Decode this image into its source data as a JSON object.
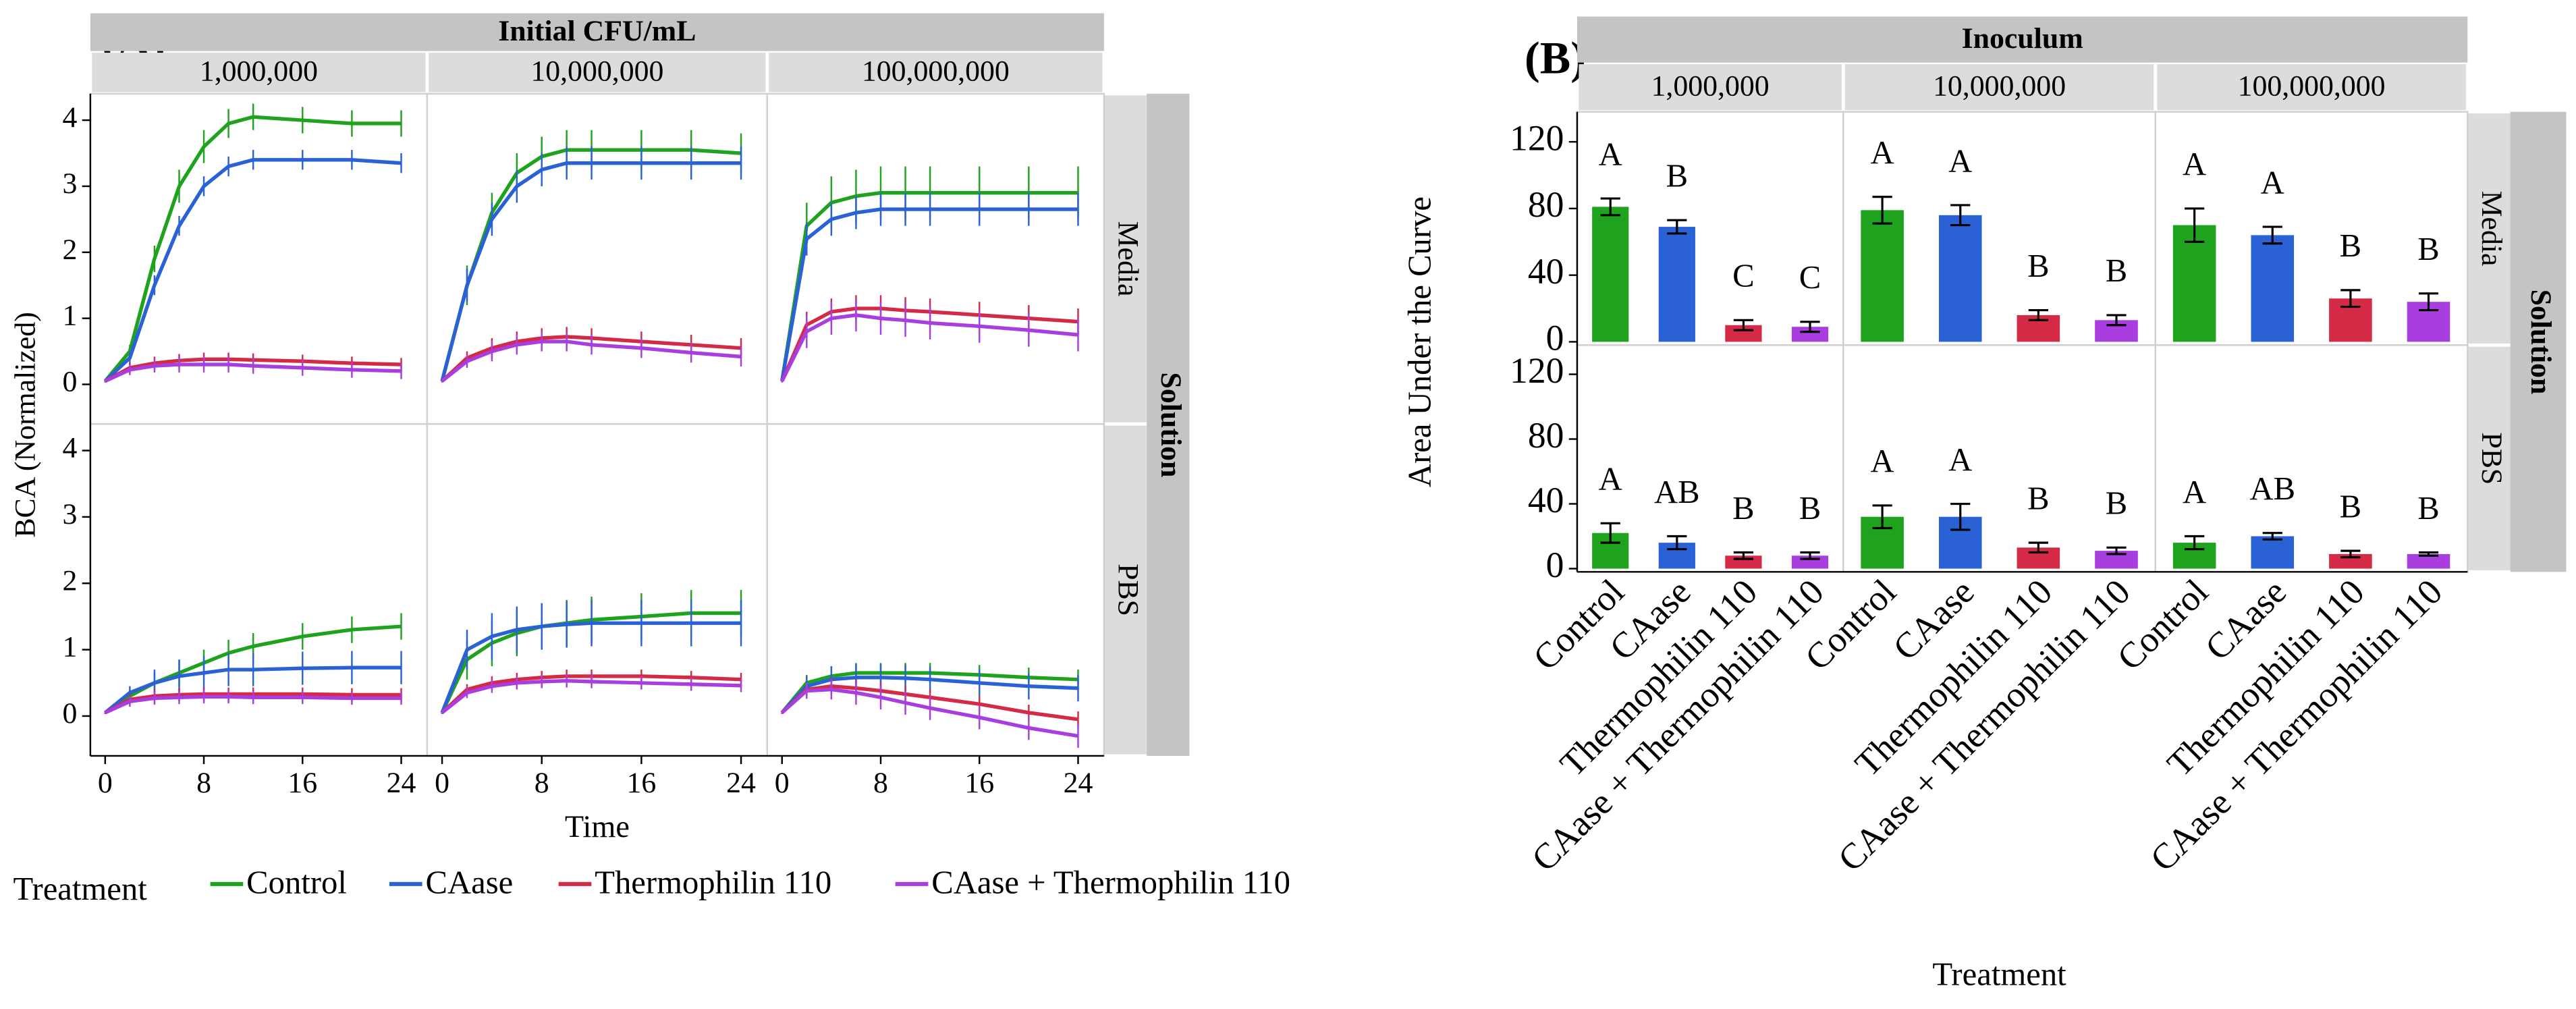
{
  "chart_data": [
    {
      "type": "line",
      "panel_label": "(A)",
      "column_header": "Initial CFU/mL",
      "columns": [
        "1,000,000",
        "10,000,000",
        "100,000,000"
      ],
      "row_header": "Solution",
      "rows": [
        "Media",
        "PBS"
      ],
      "x_label": "Time",
      "y_label": "BCA (Normalized)",
      "xlim": [
        -1.2,
        26.1
      ],
      "ylim": [
        -0.6,
        4.4
      ],
      "xticks": [
        0,
        8,
        16,
        24
      ],
      "yticks": [
        0,
        1,
        2,
        3,
        4
      ],
      "legend_title": "Treatment",
      "series": [
        {
          "name": "Control",
          "color": "#1fa31f"
        },
        {
          "name": "CAase",
          "color": "#2a62d6"
        },
        {
          "name": "Thermophilin 110",
          "color": "#d42a45"
        },
        {
          "name": "CAase + Thermophilin 110",
          "color": "#a93ee0"
        }
      ],
      "x": [
        0,
        2,
        4,
        6,
        8,
        10,
        12,
        16,
        20,
        24
      ],
      "panels": [
        [
          {
            "series": [
              {
                "values": [
                  0.05,
                  0.5,
                  1.9,
                  3.0,
                  3.6,
                  3.95,
                  4.05,
                  4.0,
                  3.95,
                  3.95
                ],
                "errors": [
                  0.02,
                  0.1,
                  0.2,
                  0.25,
                  0.25,
                  0.22,
                  0.2,
                  0.2,
                  0.2,
                  0.2
                ]
              },
              {
                "values": [
                  0.05,
                  0.4,
                  1.5,
                  2.4,
                  3.0,
                  3.3,
                  3.4,
                  3.4,
                  3.4,
                  3.35
                ],
                "errors": [
                  0.02,
                  0.1,
                  0.15,
                  0.15,
                  0.15,
                  0.15,
                  0.15,
                  0.15,
                  0.15,
                  0.15
                ]
              },
              {
                "values": [
                  0.05,
                  0.25,
                  0.32,
                  0.36,
                  0.38,
                  0.38,
                  0.37,
                  0.35,
                  0.32,
                  0.3
                ],
                "errors": [
                  0.02,
                  0.08,
                  0.1,
                  0.1,
                  0.1,
                  0.1,
                  0.1,
                  0.1,
                  0.1,
                  0.1
                ]
              },
              {
                "values": [
                  0.05,
                  0.22,
                  0.28,
                  0.3,
                  0.3,
                  0.3,
                  0.28,
                  0.25,
                  0.22,
                  0.2
                ],
                "errors": [
                  0.02,
                  0.08,
                  0.1,
                  0.12,
                  0.12,
                  0.12,
                  0.12,
                  0.12,
                  0.12,
                  0.12
                ]
              }
            ]
          },
          {
            "series": [
              {
                "values": [
                  0.05,
                  1.5,
                  2.6,
                  3.2,
                  3.45,
                  3.55,
                  3.55,
                  3.55,
                  3.55,
                  3.5
                ],
                "errors": [
                  0.02,
                  0.3,
                  0.3,
                  0.3,
                  0.3,
                  0.3,
                  0.3,
                  0.3,
                  0.3,
                  0.3
                ]
              },
              {
                "values": [
                  0.05,
                  1.5,
                  2.5,
                  3.0,
                  3.25,
                  3.35,
                  3.35,
                  3.35,
                  3.35,
                  3.35
                ],
                "errors": [
                  0.02,
                  0.25,
                  0.25,
                  0.25,
                  0.25,
                  0.25,
                  0.25,
                  0.25,
                  0.25,
                  0.25
                ]
              },
              {
                "values": [
                  0.05,
                  0.4,
                  0.55,
                  0.65,
                  0.7,
                  0.72,
                  0.7,
                  0.65,
                  0.6,
                  0.55
                ],
                "errors": [
                  0.02,
                  0.1,
                  0.15,
                  0.15,
                  0.15,
                  0.15,
                  0.15,
                  0.15,
                  0.15,
                  0.15
                ]
              },
              {
                "values": [
                  0.05,
                  0.35,
                  0.5,
                  0.6,
                  0.65,
                  0.65,
                  0.6,
                  0.55,
                  0.48,
                  0.42
                ],
                "errors": [
                  0.02,
                  0.1,
                  0.15,
                  0.15,
                  0.15,
                  0.15,
                  0.15,
                  0.15,
                  0.15,
                  0.15
                ]
              }
            ]
          },
          {
            "series": [
              {
                "values": [
                  0.05,
                  2.4,
                  2.75,
                  2.85,
                  2.9,
                  2.9,
                  2.9,
                  2.9,
                  2.9,
                  2.9
                ],
                "errors": [
                  0.02,
                  0.35,
                  0.4,
                  0.4,
                  0.4,
                  0.4,
                  0.4,
                  0.4,
                  0.4,
                  0.4
                ]
              },
              {
                "values": [
                  0.05,
                  2.2,
                  2.5,
                  2.6,
                  2.65,
                  2.65,
                  2.65,
                  2.65,
                  2.65,
                  2.65
                ],
                "errors": [
                  0.02,
                  0.25,
                  0.25,
                  0.25,
                  0.25,
                  0.25,
                  0.25,
                  0.25,
                  0.25,
                  0.25
                ]
              },
              {
                "values": [
                  0.05,
                  0.9,
                  1.1,
                  1.15,
                  1.15,
                  1.12,
                  1.1,
                  1.05,
                  1.0,
                  0.95
                ],
                "errors": [
                  0.02,
                  0.2,
                  0.2,
                  0.2,
                  0.2,
                  0.2,
                  0.2,
                  0.2,
                  0.2,
                  0.2
                ]
              },
              {
                "values": [
                  0.05,
                  0.8,
                  1.0,
                  1.05,
                  1.0,
                  0.97,
                  0.93,
                  0.88,
                  0.82,
                  0.75
                ],
                "errors": [
                  0.02,
                  0.25,
                  0.25,
                  0.25,
                  0.25,
                  0.25,
                  0.25,
                  0.25,
                  0.25,
                  0.25
                ]
              }
            ]
          }
        ],
        [
          {
            "series": [
              {
                "values": [
                  0.05,
                  0.3,
                  0.5,
                  0.65,
                  0.8,
                  0.95,
                  1.05,
                  1.2,
                  1.3,
                  1.35
                ],
                "errors": [
                  0.02,
                  0.1,
                  0.15,
                  0.2,
                  0.2,
                  0.2,
                  0.2,
                  0.2,
                  0.2,
                  0.2
                ]
              },
              {
                "values": [
                  0.05,
                  0.35,
                  0.5,
                  0.6,
                  0.65,
                  0.7,
                  0.7,
                  0.72,
                  0.73,
                  0.73
                ],
                "errors": [
                  0.02,
                  0.1,
                  0.2,
                  0.25,
                  0.25,
                  0.25,
                  0.25,
                  0.25,
                  0.25,
                  0.25
                ]
              },
              {
                "values": [
                  0.05,
                  0.25,
                  0.3,
                  0.32,
                  0.33,
                  0.33,
                  0.33,
                  0.33,
                  0.32,
                  0.32
                ],
                "errors": [
                  0.02,
                  0.08,
                  0.1,
                  0.1,
                  0.1,
                  0.1,
                  0.1,
                  0.1,
                  0.1,
                  0.1
                ]
              },
              {
                "values": [
                  0.05,
                  0.22,
                  0.27,
                  0.28,
                  0.29,
                  0.29,
                  0.28,
                  0.28,
                  0.27,
                  0.27
                ],
                "errors": [
                  0.02,
                  0.08,
                  0.1,
                  0.1,
                  0.1,
                  0.1,
                  0.1,
                  0.1,
                  0.1,
                  0.1
                ]
              }
            ]
          },
          {
            "series": [
              {
                "values": [
                  0.05,
                  0.85,
                  1.1,
                  1.25,
                  1.35,
                  1.4,
                  1.45,
                  1.5,
                  1.55,
                  1.55
                ],
                "errors": [
                  0.02,
                  0.3,
                  0.35,
                  0.35,
                  0.35,
                  0.35,
                  0.35,
                  0.35,
                  0.35,
                  0.35
                ]
              },
              {
                "values": [
                  0.05,
                  1.0,
                  1.2,
                  1.3,
                  1.35,
                  1.38,
                  1.4,
                  1.4,
                  1.4,
                  1.4
                ],
                "errors": [
                  0.02,
                  0.3,
                  0.35,
                  0.35,
                  0.35,
                  0.35,
                  0.35,
                  0.35,
                  0.35,
                  0.35
                ]
              },
              {
                "values": [
                  0.05,
                  0.4,
                  0.5,
                  0.55,
                  0.58,
                  0.6,
                  0.6,
                  0.6,
                  0.58,
                  0.55
                ],
                "errors": [
                  0.02,
                  0.08,
                  0.1,
                  0.1,
                  0.1,
                  0.1,
                  0.1,
                  0.1,
                  0.1,
                  0.1
                ]
              },
              {
                "values": [
                  0.05,
                  0.35,
                  0.45,
                  0.5,
                  0.52,
                  0.53,
                  0.52,
                  0.5,
                  0.48,
                  0.46
                ],
                "errors": [
                  0.02,
                  0.08,
                  0.1,
                  0.1,
                  0.1,
                  0.1,
                  0.1,
                  0.1,
                  0.1,
                  0.1
                ]
              }
            ]
          },
          {
            "series": [
              {
                "values": [
                  0.05,
                  0.5,
                  0.6,
                  0.65,
                  0.65,
                  0.65,
                  0.65,
                  0.62,
                  0.58,
                  0.55
                ],
                "errors": [
                  0.02,
                  0.12,
                  0.15,
                  0.15,
                  0.15,
                  0.15,
                  0.15,
                  0.15,
                  0.15,
                  0.15
                ]
              },
              {
                "values": [
                  0.05,
                  0.45,
                  0.55,
                  0.58,
                  0.58,
                  0.57,
                  0.55,
                  0.5,
                  0.45,
                  0.42
                ],
                "errors": [
                  0.02,
                  0.15,
                  0.2,
                  0.2,
                  0.2,
                  0.2,
                  0.2,
                  0.2,
                  0.2,
                  0.2
                ]
              },
              {
                "values": [
                  0.05,
                  0.4,
                  0.45,
                  0.42,
                  0.38,
                  0.33,
                  0.28,
                  0.18,
                  0.05,
                  -0.05
                ],
                "errors": [
                  0.02,
                  0.1,
                  0.12,
                  0.12,
                  0.12,
                  0.12,
                  0.12,
                  0.12,
                  0.12,
                  0.12
                ]
              },
              {
                "values": [
                  0.05,
                  0.38,
                  0.4,
                  0.35,
                  0.28,
                  0.2,
                  0.12,
                  -0.02,
                  -0.18,
                  -0.3
                ],
                "errors": [
                  0.02,
                  0.12,
                  0.15,
                  0.18,
                  0.18,
                  0.18,
                  0.18,
                  0.18,
                  0.18,
                  0.18
                ]
              }
            ]
          }
        ]
      ]
    },
    {
      "type": "bar",
      "panel_label": "(B)",
      "column_header": "Inoculum",
      "columns": [
        "1,000,000",
        "10,000,000",
        "100,000,000"
      ],
      "row_header": "Solution",
      "rows": [
        "Media",
        "PBS"
      ],
      "x_label": "Treatment",
      "y_label": "Area Under the Curve",
      "ylim": [
        -2,
        138
      ],
      "yticks": [
        0,
        40,
        80,
        120
      ],
      "categories": [
        "Control",
        "CAase",
        "Thermophilin 110",
        "CAase + Thermophilin 110"
      ],
      "colors": [
        "#1fa31f",
        "#2a62d6",
        "#d42a45",
        "#a93ee0"
      ],
      "panels": [
        [
          {
            "values": [
              81,
              69,
              10,
              9
            ],
            "errors": [
              5,
              4,
              3,
              3
            ],
            "letters": [
              "A",
              "B",
              "C",
              "C"
            ]
          },
          {
            "values": [
              79,
              76,
              16,
              13
            ],
            "errors": [
              8,
              6,
              3,
              3
            ],
            "letters": [
              "A",
              "A",
              "B",
              "B"
            ]
          },
          {
            "values": [
              70,
              64,
              26,
              24
            ],
            "errors": [
              10,
              5,
              5,
              5
            ],
            "letters": [
              "A",
              "A",
              "B",
              "B"
            ]
          }
        ],
        [
          {
            "values": [
              22,
              16,
              8,
              8
            ],
            "errors": [
              6,
              4,
              2,
              2
            ],
            "letters": [
              "A",
              "AB",
              "B",
              "B"
            ]
          },
          {
            "values": [
              32,
              32,
              13,
              11
            ],
            "errors": [
              7,
              8,
              3,
              2
            ],
            "letters": [
              "A",
              "A",
              "B",
              "B"
            ]
          },
          {
            "values": [
              16,
              20,
              9,
              9
            ],
            "errors": [
              4,
              2,
              2,
              1
            ],
            "letters": [
              "A",
              "AB",
              "B",
              "B"
            ]
          }
        ]
      ]
    }
  ]
}
